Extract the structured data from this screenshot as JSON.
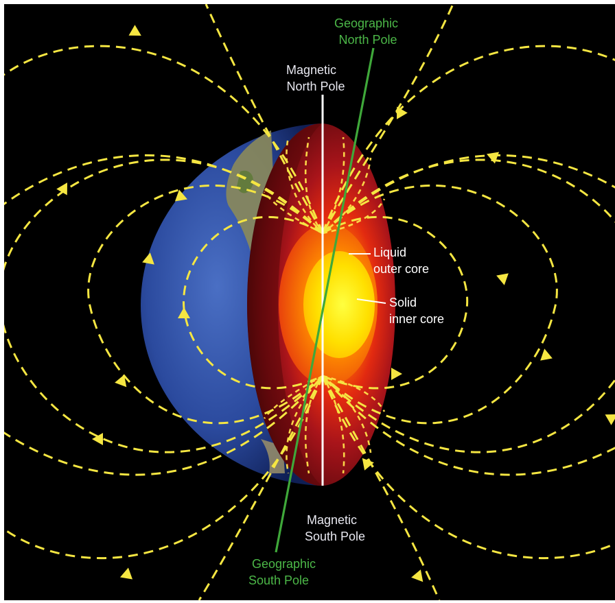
{
  "labels": {
    "geographic_north": [
      "Geographic",
      "North Pole"
    ],
    "magnetic_north": [
      "Magnetic",
      "North Pole"
    ],
    "liquid_outer_core": [
      "Liquid",
      "outer core"
    ],
    "solid_inner_core": [
      "Solid",
      "inner core"
    ],
    "magnetic_south": [
      "Magnetic",
      "South Pole"
    ],
    "geographic_south": [
      "Geographic",
      "South Pole"
    ]
  },
  "colors": {
    "background": "#000000",
    "field_lines": "#f5e642",
    "geographic_axis": "#3fa83a",
    "magnetic_axis": "#ffffff",
    "ocean": "#2e4fa6",
    "mantle": "#7a0f12",
    "outer_core": "#ff6a00",
    "inner_core": "#ffe600",
    "geographic_label": "#4cb848",
    "magnetic_label": "#e8e8f0"
  }
}
